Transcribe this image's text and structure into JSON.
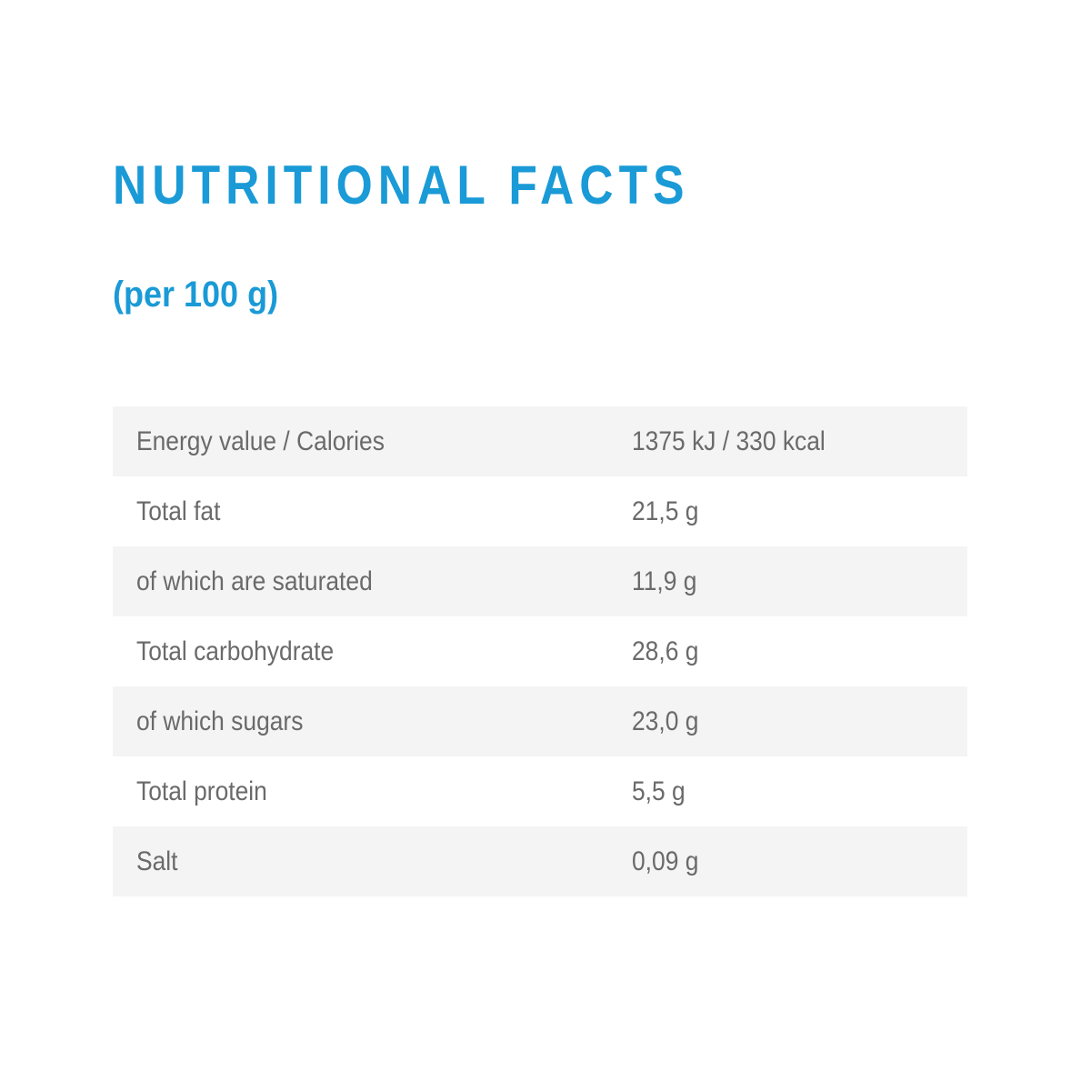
{
  "header": {
    "title": "NUTRITIONAL FACTS",
    "subtitle": "(per 100 g)"
  },
  "table": {
    "rows": [
      [
        "Energy value / Calories",
        "1375 kJ / 330 kcal"
      ],
      [
        "Total fat",
        "21,5 g"
      ],
      [
        "of which are saturated",
        "11,9 g"
      ],
      [
        "Total carbohydrate",
        "28,6 g"
      ],
      [
        "of which sugars",
        "23,0 g"
      ],
      [
        "Total protein",
        "5,5 g"
      ],
      [
        "Salt",
        "0,09 g"
      ]
    ]
  }
}
